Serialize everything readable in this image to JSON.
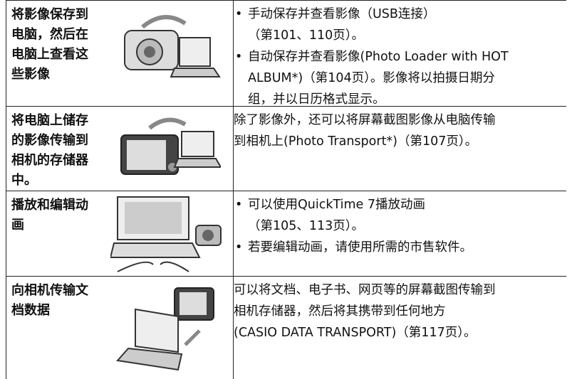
{
  "table": {
    "rows": [
      {
        "label": [
          "将影像保存到",
          "电脑，然后在",
          "电脑上查看这",
          "些影像"
        ],
        "bullets": [
          [
            "手动保存并查看影像（USB连接）",
            "（第101、110页）。"
          ],
          [
            "自动保存并查看影像(Photo Loader with HOT",
            "ALBUM*)（第104页）。影像将以拍摄日期分",
            "组，并以日历格式显示。"
          ]
        ]
      },
      {
        "label": [
          "将电脑上储存",
          "的影像传输到",
          "相机的存储器",
          "中。"
        ],
        "paragraph": [
          "除了影像外，还可以将屏幕截图影像从电脑传输",
          "到相机上(Photo Transport*)（第107页）。"
        ]
      },
      {
        "label": [
          "播放和编辑动",
          "画"
        ],
        "bullets": [
          [
            "可以使用QuickTime 7播放动画",
            "（第105、113页）。"
          ],
          [
            "若要编辑动画，请使用所需的市售软件。"
          ]
        ]
      },
      {
        "label": [
          "向相机传输文",
          "档数据"
        ],
        "paragraph": [
          "可以将文档、电子书、网页等的屏幕截图传输到",
          "相机存储器，然后将其携带到任何地方",
          "(CASIO DATA TRANSPORT)（第117页）。"
        ]
      }
    ]
  }
}
